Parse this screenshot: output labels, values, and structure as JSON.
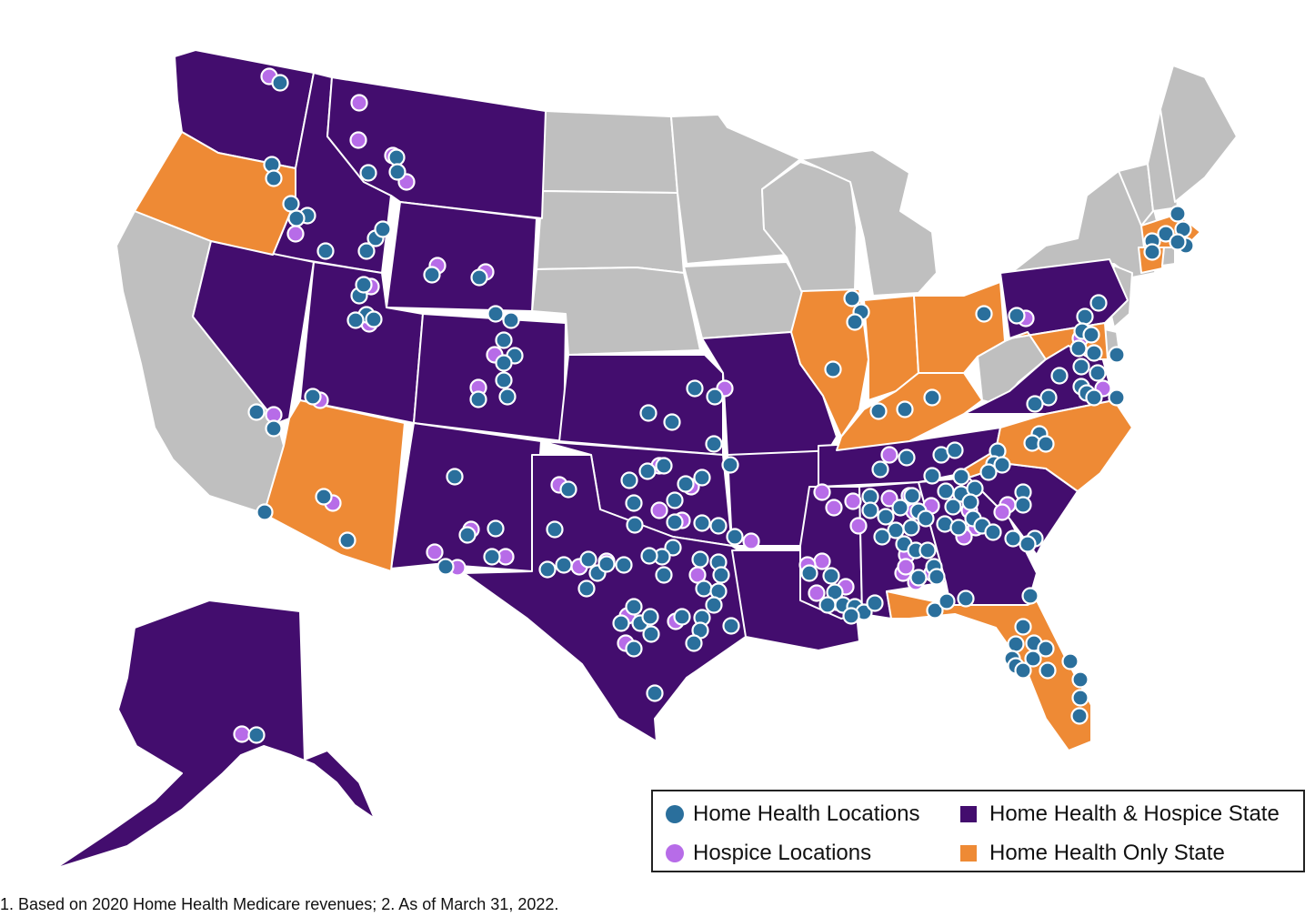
{
  "colors": {
    "home_health_hospice_state": "#430d6e",
    "home_health_only_state": "#ee8a35",
    "other_state": "#bfbfbf",
    "home_health_location": "#2a6f9c",
    "hospice_location": "#b76ce8",
    "border": "#ffffff"
  },
  "legend": {
    "home_health_locations": "Home Health Locations",
    "hospice_locations": "Hospice Locations",
    "home_health_hospice_state": "Home Health & Hospice State",
    "home_health_only_state": "Home Health Only State"
  },
  "footnote": "1. Based on 2020 Home Health Medicare revenues; 2. As of March 31, 2022.",
  "states": {
    "home_health_hospice": [
      "WA",
      "ID",
      "MT",
      "WY",
      "NV",
      "UT",
      "CO",
      "NM",
      "TX",
      "OK",
      "KS",
      "MO",
      "AR",
      "LA",
      "MS",
      "AL",
      "GA",
      "SC",
      "TN",
      "VA",
      "PA",
      "AK"
    ],
    "home_health_only": [
      "OR",
      "AZ",
      "IL",
      "IN",
      "OH",
      "KY",
      "NC",
      "FL",
      "MD",
      "MA",
      "CT"
    ],
    "other": [
      "CA",
      "ND",
      "SD",
      "NE",
      "MN",
      "IA",
      "WI",
      "MI",
      "NY",
      "VT",
      "NH",
      "ME",
      "WV",
      "NJ",
      "DE",
      "RI"
    ]
  }
}
